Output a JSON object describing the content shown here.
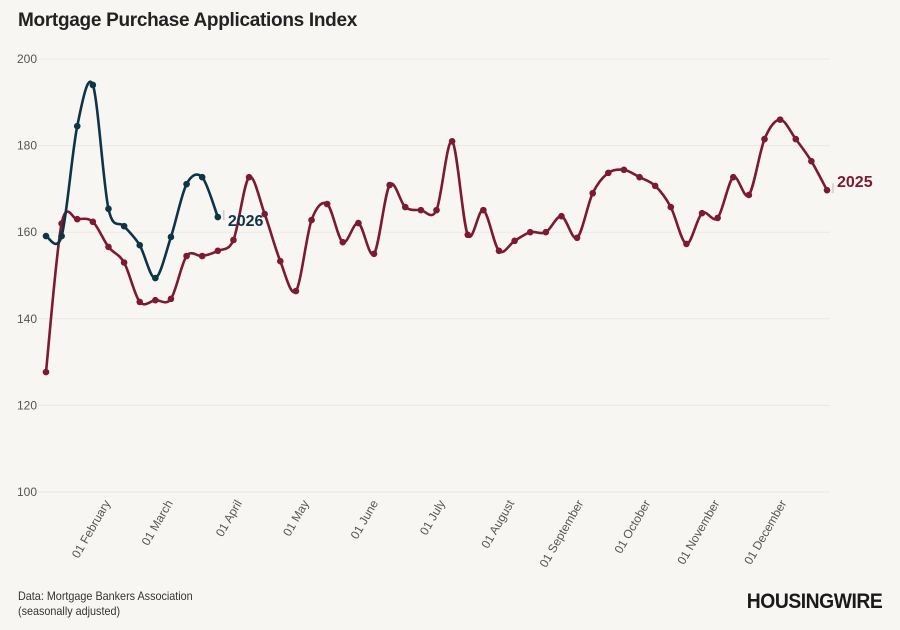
{
  "chart_data": {
    "type": "line",
    "title": "Mortgage Purchase Applications Index",
    "xlabel": "",
    "ylabel": "",
    "ylim": [
      100,
      200
    ],
    "yticks": [
      100,
      120,
      140,
      160,
      180,
      200
    ],
    "grid": true,
    "xtick_labels": [
      "01 February",
      "01 March",
      "01 April",
      "01 May",
      "01 June",
      "01 July",
      "01 August",
      "01 September",
      "01 October",
      "01 November",
      "01 December"
    ],
    "series": [
      {
        "name": "2025",
        "color": "#7b1a30",
        "x": [
          "01-03",
          "01-10",
          "01-17",
          "01-24",
          "01-31",
          "02-07",
          "02-14",
          "02-21",
          "02-28",
          "03-07",
          "03-14",
          "03-21",
          "03-28",
          "04-04",
          "04-11",
          "04-18",
          "04-25",
          "05-02",
          "05-09",
          "05-16",
          "05-23",
          "05-30",
          "06-06",
          "06-13",
          "06-20",
          "06-27",
          "07-04",
          "07-11",
          "07-18",
          "07-25",
          "08-01",
          "08-08",
          "08-15",
          "08-22",
          "08-29",
          "09-05",
          "09-12",
          "09-19",
          "09-26",
          "10-03",
          "10-10",
          "10-17",
          "10-24",
          "10-31",
          "11-07",
          "11-14",
          "11-21",
          "11-28",
          "12-05",
          "12-12",
          "12-19"
        ],
        "values": [
          127.7,
          162.0,
          163.0,
          162.4,
          156.6,
          153.0,
          143.9,
          144.3,
          144.6,
          154.5,
          154.5,
          155.7,
          158.2,
          172.7,
          164.2,
          153.3,
          146.4,
          162.8,
          166.5,
          157.7,
          162.1,
          155.0,
          170.9,
          165.8,
          165.1,
          165.1,
          181.0,
          159.4,
          165.1,
          155.7,
          158.0,
          160.0,
          160.0,
          163.7,
          158.7,
          169.0,
          173.7,
          174.4,
          172.7,
          170.7,
          165.8,
          157.3,
          164.4,
          163.3,
          172.7,
          168.6,
          181.5,
          186.0,
          181.5,
          176.4,
          169.7
        ]
      },
      {
        "name": "2026",
        "color": "#0e3446",
        "x": [
          "01-02",
          "01-09",
          "01-16",
          "01-23",
          "01-30",
          "02-06",
          "02-13",
          "02-20",
          "02-27",
          "03-06",
          "03-13",
          "03-20"
        ],
        "values": [
          159.1,
          159.1,
          184.5,
          194.0,
          165.4,
          161.4,
          157.0,
          149.4,
          158.9,
          171.1,
          172.7,
          163.5
        ]
      }
    ]
  },
  "source": {
    "line1": "Data: Mortgage Bankers Association",
    "line2": "(seasonally adjusted)"
  },
  "logo": "HOUSINGWIRE"
}
